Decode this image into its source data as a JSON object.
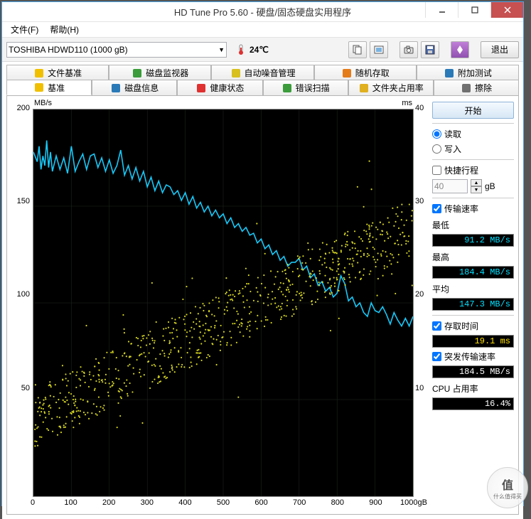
{
  "window": {
    "title": "HD Tune Pro 5.60 - 硬盘/固态硬盘实用程序"
  },
  "menu": {
    "file": "文件(F)",
    "help": "帮助(H)"
  },
  "toolbar": {
    "drive": "TOSHIBA HDWD110 (1000 gB)",
    "temp": "24℃",
    "exit": "退出"
  },
  "tabs_row1": [
    {
      "label": "文件基准",
      "icon": "#f0c000"
    },
    {
      "label": "磁盘监视器",
      "icon": "#3a9c3a"
    },
    {
      "label": "自动噪音管理",
      "icon": "#d8c020"
    },
    {
      "label": "随机存取",
      "icon": "#e47c1a"
    },
    {
      "label": "附加测试",
      "icon": "#2a7ab8"
    }
  ],
  "tabs_row2": [
    {
      "label": "基准",
      "icon": "#f0c000",
      "active": true
    },
    {
      "label": "磁盘信息",
      "icon": "#2a7ab8"
    },
    {
      "label": "健康状态",
      "icon": "#e03030"
    },
    {
      "label": "错误扫描",
      "icon": "#3a9c3a"
    },
    {
      "label": "文件夹占用率",
      "icon": "#e0b020"
    },
    {
      "label": "擦除",
      "icon": "#707070"
    }
  ],
  "chart": {
    "y_label": "MB/s",
    "y2_label": "ms",
    "x_unit": "gB",
    "y_min": 0,
    "y_max": 200,
    "y_step": 50,
    "y2_min": 0,
    "y2_max": 40,
    "y2_step": 10,
    "x_min": 0,
    "x_max": 1000,
    "x_step": 100,
    "bg": "#000000",
    "grid_color": "#1e281e",
    "line_color": "#18c8f8",
    "scatter_color": "#d8d820",
    "transfer_line": [
      [
        0,
        178
      ],
      [
        10,
        173
      ],
      [
        15,
        181
      ],
      [
        20,
        169
      ],
      [
        25,
        176
      ],
      [
        30,
        171
      ],
      [
        35,
        184
      ],
      [
        40,
        170
      ],
      [
        45,
        178
      ],
      [
        50,
        168
      ],
      [
        60,
        176
      ],
      [
        70,
        169
      ],
      [
        80,
        175
      ],
      [
        90,
        167
      ],
      [
        100,
        181
      ],
      [
        110,
        168
      ],
      [
        120,
        173
      ],
      [
        130,
        177
      ],
      [
        140,
        169
      ],
      [
        150,
        176
      ],
      [
        160,
        177
      ],
      [
        170,
        170
      ],
      [
        180,
        175
      ],
      [
        190,
        168
      ],
      [
        200,
        174
      ],
      [
        210,
        167
      ],
      [
        220,
        171
      ],
      [
        230,
        179
      ],
      [
        240,
        166
      ],
      [
        250,
        171
      ],
      [
        260,
        164
      ],
      [
        270,
        170
      ],
      [
        280,
        163
      ],
      [
        290,
        168
      ],
      [
        300,
        160
      ],
      [
        310,
        165
      ],
      [
        320,
        158
      ],
      [
        330,
        163
      ],
      [
        340,
        157
      ],
      [
        350,
        161
      ],
      [
        360,
        160
      ],
      [
        370,
        156
      ],
      [
        380,
        158
      ],
      [
        390,
        153
      ],
      [
        400,
        157
      ],
      [
        410,
        151
      ],
      [
        420,
        155
      ],
      [
        430,
        149
      ],
      [
        440,
        152
      ],
      [
        450,
        147
      ],
      [
        460,
        150
      ],
      [
        470,
        145
      ],
      [
        480,
        148
      ],
      [
        490,
        144
      ],
      [
        500,
        146
      ],
      [
        510,
        141
      ],
      [
        520,
        144
      ],
      [
        530,
        139
      ],
      [
        540,
        141
      ],
      [
        550,
        137
      ],
      [
        560,
        139
      ],
      [
        570,
        135
      ],
      [
        580,
        136
      ],
      [
        590,
        131
      ],
      [
        600,
        133
      ],
      [
        610,
        128
      ],
      [
        620,
        130
      ],
      [
        630,
        125
      ],
      [
        640,
        127
      ],
      [
        650,
        122
      ],
      [
        660,
        124
      ],
      [
        670,
        119
      ],
      [
        680,
        121
      ],
      [
        690,
        121
      ],
      [
        700,
        123
      ],
      [
        710,
        117
      ],
      [
        720,
        119
      ],
      [
        730,
        113
      ],
      [
        740,
        115
      ],
      [
        750,
        109
      ],
      [
        760,
        111
      ],
      [
        770,
        106
      ],
      [
        780,
        108
      ],
      [
        790,
        103
      ],
      [
        800,
        105
      ],
      [
        810,
        114
      ],
      [
        820,
        110
      ],
      [
        830,
        101
      ],
      [
        840,
        103
      ],
      [
        850,
        98
      ],
      [
        860,
        100
      ],
      [
        870,
        95
      ],
      [
        880,
        93
      ],
      [
        890,
        100
      ],
      [
        900,
        96
      ],
      [
        910,
        95
      ],
      [
        920,
        98
      ],
      [
        930,
        94
      ],
      [
        940,
        89
      ],
      [
        950,
        95
      ],
      [
        960,
        91
      ],
      [
        970,
        88
      ],
      [
        980,
        92
      ],
      [
        990,
        88
      ],
      [
        1000,
        93
      ]
    ]
  },
  "side": {
    "start": "开始",
    "read": "读取",
    "write": "写入",
    "short_stroke": "快捷行程",
    "stroke_val": "40",
    "stroke_unit": "gB",
    "transfer_rate": "传输速率",
    "min_label": "最低",
    "min_val": "91.2 MB/s",
    "max_label": "最高",
    "max_val": "184.4 MB/s",
    "avg_label": "平均",
    "avg_val": "147.3 MB/s",
    "access_time": "存取时间",
    "access_val": "19.1 ms",
    "burst_rate": "突发传输速率",
    "burst_val": "184.5 MB/s",
    "cpu_label": "CPU 占用率",
    "cpu_val": "16.4%"
  },
  "watermark": {
    "top": "值",
    "bottom": "什么值得买"
  }
}
